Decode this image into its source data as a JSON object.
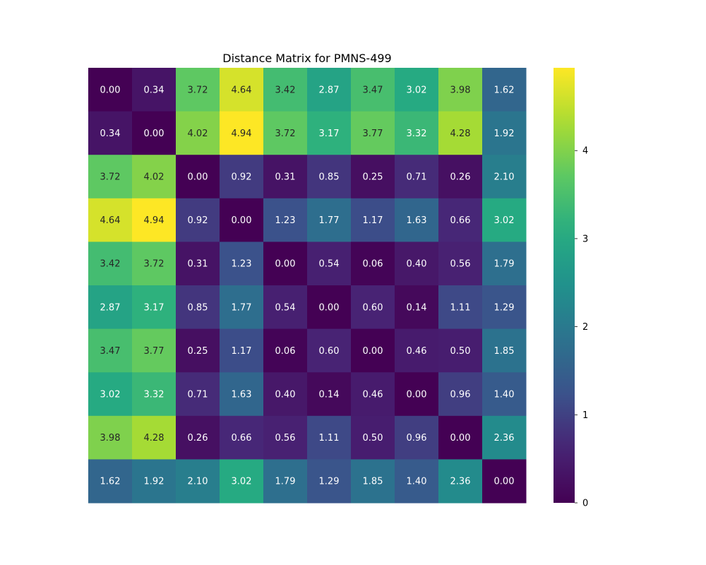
{
  "chart_data": {
    "type": "heatmap",
    "title": "Distance Matrix for PMNS-499",
    "xlabel": "",
    "ylabel": "",
    "colormap": "viridis",
    "value_range": [
      0,
      4.94
    ],
    "colorbar_ticks": [
      "0",
      "1",
      "2",
      "3",
      "4"
    ],
    "colorbar_tick_values": [
      0,
      1,
      2,
      3,
      4
    ],
    "cell_labels_shown": true,
    "matrix": [
      [
        0.0,
        0.34,
        3.72,
        4.64,
        3.42,
        2.87,
        3.47,
        3.02,
        3.98,
        1.62
      ],
      [
        0.34,
        0.0,
        4.02,
        4.94,
        3.72,
        3.17,
        3.77,
        3.32,
        4.28,
        1.92
      ],
      [
        3.72,
        4.02,
        0.0,
        0.92,
        0.31,
        0.85,
        0.25,
        0.71,
        0.26,
        2.1
      ],
      [
        4.64,
        4.94,
        0.92,
        0.0,
        1.23,
        1.77,
        1.17,
        1.63,
        0.66,
        3.02
      ],
      [
        3.42,
        3.72,
        0.31,
        1.23,
        0.0,
        0.54,
        0.06,
        0.4,
        0.56,
        1.79
      ],
      [
        2.87,
        3.17,
        0.85,
        1.77,
        0.54,
        0.0,
        0.6,
        0.14,
        1.11,
        1.29
      ],
      [
        3.47,
        3.77,
        0.25,
        1.17,
        0.06,
        0.6,
        0.0,
        0.46,
        0.5,
        1.85
      ],
      [
        3.02,
        3.32,
        0.71,
        1.63,
        0.4,
        0.14,
        0.46,
        0.0,
        0.96,
        1.4
      ],
      [
        3.98,
        4.28,
        0.26,
        0.66,
        0.56,
        1.11,
        0.5,
        0.96,
        0.0,
        2.36
      ],
      [
        1.62,
        1.92,
        2.1,
        3.02,
        1.79,
        1.29,
        1.85,
        1.4,
        2.36,
        0.0
      ]
    ]
  }
}
